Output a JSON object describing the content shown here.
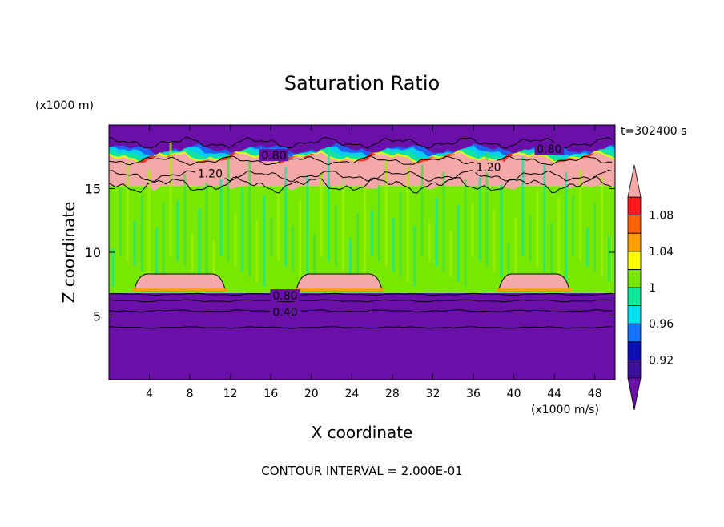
{
  "chart_data": {
    "type": "heatmap",
    "title": "Saturation Ratio",
    "xlabel": "X coordinate",
    "ylabel": "Z coordinate",
    "x_unit": "(x1000 m/s)",
    "y_unit": "(x1000 m)",
    "time_label": "t=302400 s",
    "footer": "CONTOUR INTERVAL = 2.000E-01",
    "xlim": [
      0,
      50
    ],
    "ylim": [
      0,
      20
    ],
    "x_ticks": [
      "4",
      "8",
      "12",
      "16",
      "20",
      "24",
      "28",
      "32",
      "36",
      "40",
      "44",
      "48"
    ],
    "x_tick_values": [
      4,
      8,
      12,
      16,
      20,
      24,
      28,
      32,
      36,
      40,
      44,
      48
    ],
    "y_ticks": [
      "5",
      "10",
      "15"
    ],
    "y_tick_values": [
      5,
      10,
      15
    ],
    "colorbar": {
      "bounds": [
        0.9,
        0.92,
        0.94,
        0.96,
        0.98,
        1.0,
        1.02,
        1.04,
        1.06,
        1.08,
        1.1
      ],
      "colors": [
        "#5a10a0",
        "#3c109c",
        "#0a10b4",
        "#1470ff",
        "#00e0f0",
        "#10e898",
        "#78e800",
        "#ffff00",
        "#ffa000",
        "#ff6000",
        "#ff1818"
      ],
      "under_color": "#6a0fa8",
      "over_color": "#f4a8a8",
      "labels": [
        "0.92",
        "0.96",
        "1",
        "1.04",
        "1.08"
      ],
      "label_values": [
        0.92,
        0.96,
        1.0,
        1.04,
        1.08
      ]
    },
    "regions": [
      {
        "z_from": 0,
        "z_to": 6.8,
        "value": "<0.90",
        "color": "#6a0fa8"
      },
      {
        "z_from": 6.8,
        "z_to": 15.2,
        "value": "1.00-1.02",
        "color": "#78e800"
      },
      {
        "z_from": 15.2,
        "z_to": 17.2,
        "value": ">1.10",
        "color": "#f4a8a8"
      },
      {
        "z_from": 17.2,
        "z_to": 20,
        "value": "<0.90",
        "color": "#6a0fa8"
      }
    ],
    "contour_labels": [
      {
        "text": "0.80",
        "x": 16.3,
        "z": 17.6
      },
      {
        "text": "0.80",
        "x": 43.5,
        "z": 18.1
      },
      {
        "text": "1.20",
        "x": 10.0,
        "z": 16.2
      },
      {
        "text": "1.20",
        "x": 37.5,
        "z": 16.7
      },
      {
        "text": "0.80",
        "x": 17.4,
        "z": 6.6
      },
      {
        "text": "0.40",
        "x": 17.4,
        "z": 5.3
      }
    ],
    "grid": false,
    "legend": "colorbar right"
  }
}
